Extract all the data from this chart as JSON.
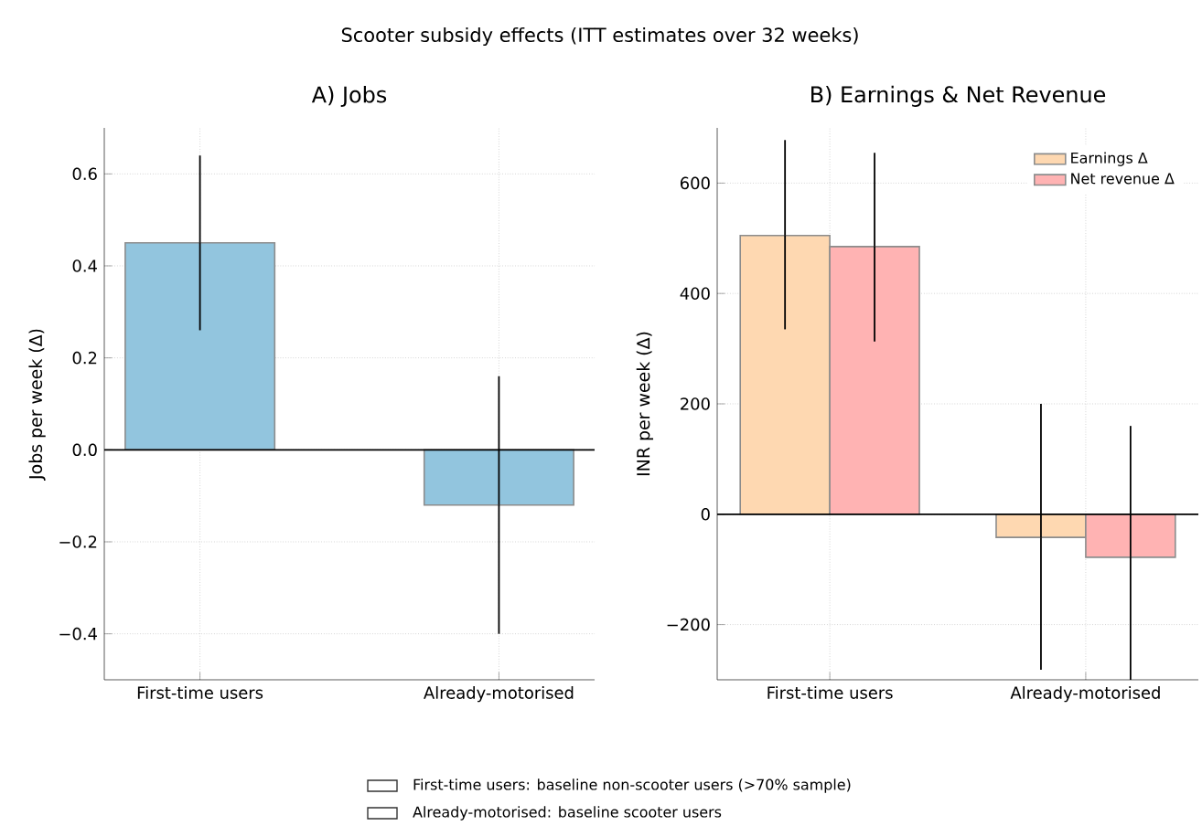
{
  "chart_data": [
    {
      "type": "bar",
      "title": "A) Jobs",
      "ylabel": "Jobs per week (Δ)",
      "annotations": [
        "Scooter subsidy effects (ITT estimates over 32 weeks)",
        "First-time users: baseline non-scooter users (>70% sample)",
        "Already-motorised: baseline scooter users"
      ],
      "categories": [
        "First-time users",
        "Already-motorised"
      ],
      "series": [
        {
          "color": "#92c5de",
          "values": [
            0.45,
            -0.12
          ],
          "errors": [
            [
              0.26,
              0.64
            ],
            [
              -0.4,
              0.16
            ]
          ]
        }
      ],
      "ylim": [
        -0.5,
        0.7
      ],
      "yticks": [
        {
          "value": -0.4,
          "label": "−0.4"
        },
        {
          "value": -0.2,
          "label": "−0.2"
        },
        {
          "value": 0,
          "label": "0.0"
        },
        {
          "value": 0.2,
          "label": "0.2"
        },
        {
          "value": 0.4,
          "label": "0.4"
        },
        {
          "value": 0.6,
          "label": "0.6"
        }
      ],
      "ref_lines": [
        {
          "axis": "y",
          "value": 0,
          "color": "#000000"
        }
      ],
      "grid": true
    },
    {
      "type": "bar",
      "title": "B) Earnings & Net Revenue",
      "ylabel": "INR per week (Δ)",
      "categories": [
        "First-time users",
        "Already-motorised"
      ],
      "series": [
        {
          "name": "Earnings Δ",
          "color": "#fed8b1",
          "values": [
            505,
            -42
          ],
          "errors": [
            [
              335,
              678
            ],
            [
              -282,
              200
            ]
          ]
        },
        {
          "name": "Net revenue Δ",
          "color": "#ffb3b3",
          "values": [
            485,
            -78
          ],
          "errors": [
            [
              313,
              655
            ],
            [
              -300,
              160
            ]
          ]
        }
      ],
      "ylim": [
        -300,
        700
      ],
      "yticks": [
        {
          "value": -200,
          "label": "−200"
        },
        0,
        200,
        400,
        600
      ],
      "ref_lines": [
        {
          "axis": "y",
          "value": 0,
          "color": "#000000"
        }
      ],
      "grid": true,
      "legend": "top right"
    }
  ]
}
